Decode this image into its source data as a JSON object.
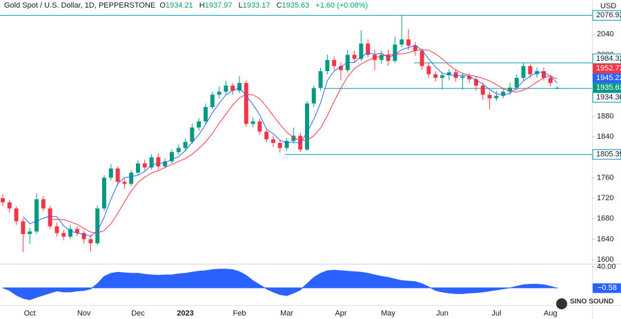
{
  "chart_data": {
    "type": "candlestick",
    "title": "Gold Spot / U.S. Dollar, 1D, PEPPERSTONE",
    "currency": "USD",
    "ohlc_letters": [
      "O",
      "H",
      "L",
      "C"
    ],
    "change": "+1.60 (+0.08%)",
    "categories": [
      null,
      null,
      null,
      null,
      "Oct",
      null,
      null,
      null,
      null,
      null,
      null,
      null,
      "Nov",
      null,
      null,
      null,
      null,
      null,
      null,
      null,
      "Dec",
      null,
      null,
      null,
      null,
      null,
      null,
      "2023",
      null,
      null,
      null,
      null,
      null,
      null,
      null,
      "Feb",
      null,
      null,
      null,
      null,
      null,
      null,
      "Mar",
      null,
      null,
      null,
      null,
      null,
      null,
      null,
      "Apr",
      null,
      null,
      null,
      null,
      null,
      null,
      "May",
      null,
      null,
      null,
      null,
      null,
      null,
      null,
      "Jun",
      null,
      null,
      null,
      null,
      null,
      null,
      null,
      "Jul",
      null,
      null,
      null,
      null,
      null,
      null,
      null,
      "Aug",
      null
    ],
    "open": [
      1720,
      1712,
      1700,
      1675,
      1650,
      1655,
      1718,
      1700,
      1665,
      1652,
      1645,
      1660,
      1652,
      1640,
      1632,
      1700,
      1760,
      1778,
      1752,
      1748,
      1770,
      1788,
      1780,
      1800,
      1782,
      1792,
      1810,
      1818,
      1830,
      1858,
      1870,
      1898,
      1922,
      1928,
      1940,
      1930,
      1945,
      1865,
      1870,
      1850,
      1835,
      1828,
      1818,
      1832,
      1842,
      1815,
      1905,
      1935,
      1968,
      1990,
      1978,
      1970,
      2000,
      1992,
      2022,
      2000,
      1990,
      2000,
      1988,
      2020,
      2030,
      2018,
      2008,
      1978,
      1962,
      1955,
      1960,
      1966,
      1955,
      1958,
      1952,
      1940,
      1922,
      1915,
      1920,
      1928,
      1936,
      1955,
      1978,
      1962,
      1968,
      1955,
      1934.21
    ],
    "high": [
      1728,
      1716,
      1704,
      1680,
      1662,
      1730,
      1724,
      1705,
      1672,
      1658,
      1668,
      1665,
      1656,
      1648,
      1706,
      1765,
      1786,
      1782,
      1758,
      1775,
      1794,
      1795,
      1806,
      1808,
      1798,
      1816,
      1825,
      1836,
      1865,
      1876,
      1905,
      1928,
      1938,
      1949,
      1945,
      1959,
      1950,
      1878,
      1875,
      1856,
      1842,
      1834,
      1838,
      1858,
      1848,
      1910,
      1940,
      1975,
      2000,
      1996,
      1985,
      2010,
      2008,
      2048,
      2030,
      2010,
      2008,
      2010,
      2035,
      2076.93,
      2050,
      2025,
      2012,
      1984,
      1968,
      1966,
      1972,
      1972,
      1964,
      1964,
      1958,
      1945,
      1928,
      1930,
      1935,
      1945,
      1962,
      1984.32,
      1982,
      1975,
      1975,
      1960,
      1937.97
    ],
    "low": [
      1704,
      1692,
      1668,
      1615,
      1630,
      1650,
      1694,
      1660,
      1645,
      1638,
      1640,
      1646,
      1632,
      1616,
      1628,
      1695,
      1755,
      1745,
      1738,
      1744,
      1765,
      1774,
      1776,
      1776,
      1778,
      1788,
      1805,
      1812,
      1826,
      1852,
      1866,
      1894,
      1915,
      1922,
      1922,
      1925,
      1860,
      1858,
      1845,
      1829,
      1820,
      1809,
      1812,
      1826,
      1810,
      1812,
      1898,
      1930,
      1962,
      1970,
      1950,
      1965,
      1985,
      1988,
      1995,
      1970,
      1982,
      1978,
      1984,
      2015,
      2010,
      1998,
      1970,
      1955,
      1948,
      1932,
      1950,
      1948,
      1932,
      1945,
      1930,
      1912,
      1893,
      1910,
      1915,
      1922,
      1930,
      1950,
      1955,
      1955,
      1950,
      1938,
      1933.17
    ],
    "close": [
      1712,
      1700,
      1675,
      1650,
      1655,
      1718,
      1700,
      1665,
      1652,
      1645,
      1660,
      1652,
      1640,
      1632,
      1700,
      1760,
      1778,
      1752,
      1748,
      1770,
      1788,
      1780,
      1800,
      1782,
      1792,
      1810,
      1818,
      1830,
      1858,
      1870,
      1898,
      1922,
      1928,
      1940,
      1930,
      1945,
      1865,
      1870,
      1850,
      1835,
      1828,
      1818,
      1832,
      1842,
      1815,
      1905,
      1935,
      1968,
      1990,
      1978,
      1970,
      2000,
      1992,
      2022,
      2000,
      1990,
      2000,
      1988,
      2020,
      2030,
      2018,
      2008,
      1978,
      1962,
      1955,
      1960,
      1966,
      1955,
      1958,
      1952,
      1940,
      1922,
      1915,
      1920,
      1928,
      1936,
      1955,
      1978,
      1962,
      1968,
      1955,
      1945,
      1935.63
    ],
    "up_color": "#089981",
    "down_color": "#f23645",
    "lines": [
      {
        "color": "#2962ff",
        "values": [
          null,
          null,
          null,
          1684,
          1670,
          1675,
          1681,
          1685,
          1684,
          1666,
          1656,
          1652,
          1649,
          1646,
          1656,
          1683,
          1718,
          1748,
          1760,
          1762,
          1765,
          1772,
          1785,
          1788,
          1789,
          1796,
          1801,
          1813,
          1829,
          1844,
          1864,
          1887,
          1905,
          1922,
          1930,
          1936,
          1920,
          1903,
          1883,
          1855,
          1846,
          1833,
          1828,
          1830,
          1827,
          1849,
          1874,
          1906,
          1950,
          1968,
          1977,
          1985,
          1985,
          1996,
          2004,
          2001,
          2003,
          1995,
          2000,
          2010,
          2014,
          2019,
          2009,
          1992,
          1976,
          1964,
          1961,
          1959,
          1960,
          1958,
          1951,
          1943,
          1932,
          1924,
          1921,
          1925,
          1935,
          1949,
          1958,
          1966,
          1966,
          1958,
          1945.22
        ]
      },
      {
        "color": "#f23645",
        "values": [
          null,
          null,
          null,
          null,
          null,
          null,
          null,
          1679,
          1679,
          1678,
          1674,
          1669,
          1661,
          1654,
          1652,
          1657,
          1670,
          1690,
          1713,
          1734,
          1751,
          1761,
          1769,
          1774,
          1780,
          1786,
          1792,
          1797,
          1806,
          1817,
          1830,
          1847,
          1866,
          1884,
          1902,
          1916,
          1923,
          1922,
          1914,
          1899,
          1881,
          1864,
          1849,
          1838,
          1833,
          1833,
          1842,
          1857,
          1881,
          1909,
          1935,
          1957,
          1973,
          1982,
          1989,
          1994,
          1998,
          2000,
          2001,
          2002,
          2004,
          2008,
          2010,
          2009,
          2002,
          1992,
          1980,
          1970,
          1964,
          1960,
          1958,
          1954,
          1949,
          1942,
          1934,
          1929,
          1927,
          1931,
          1938,
          1947,
          1955,
          1959,
          1952.72
        ]
      }
    ],
    "ylim": [
      1592,
      2107
    ],
    "yticks": [
      1600,
      1640,
      1680,
      1720,
      1760,
      1800,
      1840,
      1880,
      1920,
      1960,
      2000,
      2040
    ],
    "grid": false,
    "hline_color": "#0097a7",
    "hlines": [
      {
        "value": 2076.93,
        "label": "2076.93"
      },
      {
        "value": 1984.32,
        "label": "1984.32"
      },
      {
        "value": 1934.3,
        "label": "1934.30"
      },
      {
        "value": 1805.39,
        "label": "1805.39"
      }
    ],
    "oscillator": {
      "color": "#2962ff",
      "ylim": [
        -32,
        45
      ],
      "yticks": [
        {
          "value": 40,
          "label": "40.00"
        }
      ],
      "values": [
        0,
        -5,
        -14,
        -20,
        -23,
        -18,
        -14,
        -10,
        -6,
        -8,
        -8,
        -6,
        -5,
        -2,
        8,
        22,
        28,
        30,
        29,
        28,
        28,
        26,
        25,
        24,
        25,
        25,
        27,
        28,
        30,
        32,
        33,
        35,
        36,
        36,
        35,
        31,
        24,
        14,
        6,
        -2,
        -8,
        -13,
        -15,
        -10,
        -4,
        8,
        20,
        28,
        33,
        34,
        33,
        32,
        31,
        30,
        28,
        25,
        22,
        20,
        17,
        14,
        13,
        12,
        8,
        2,
        -5,
        -8,
        -10,
        -11,
        -11,
        -10,
        -9,
        -8,
        -6,
        -4,
        -2,
        0,
        3,
        6,
        7,
        7,
        6,
        3,
        -0.58
      ],
      "last_label": "−0.58"
    },
    "watermark": "SINO SOUND"
  }
}
